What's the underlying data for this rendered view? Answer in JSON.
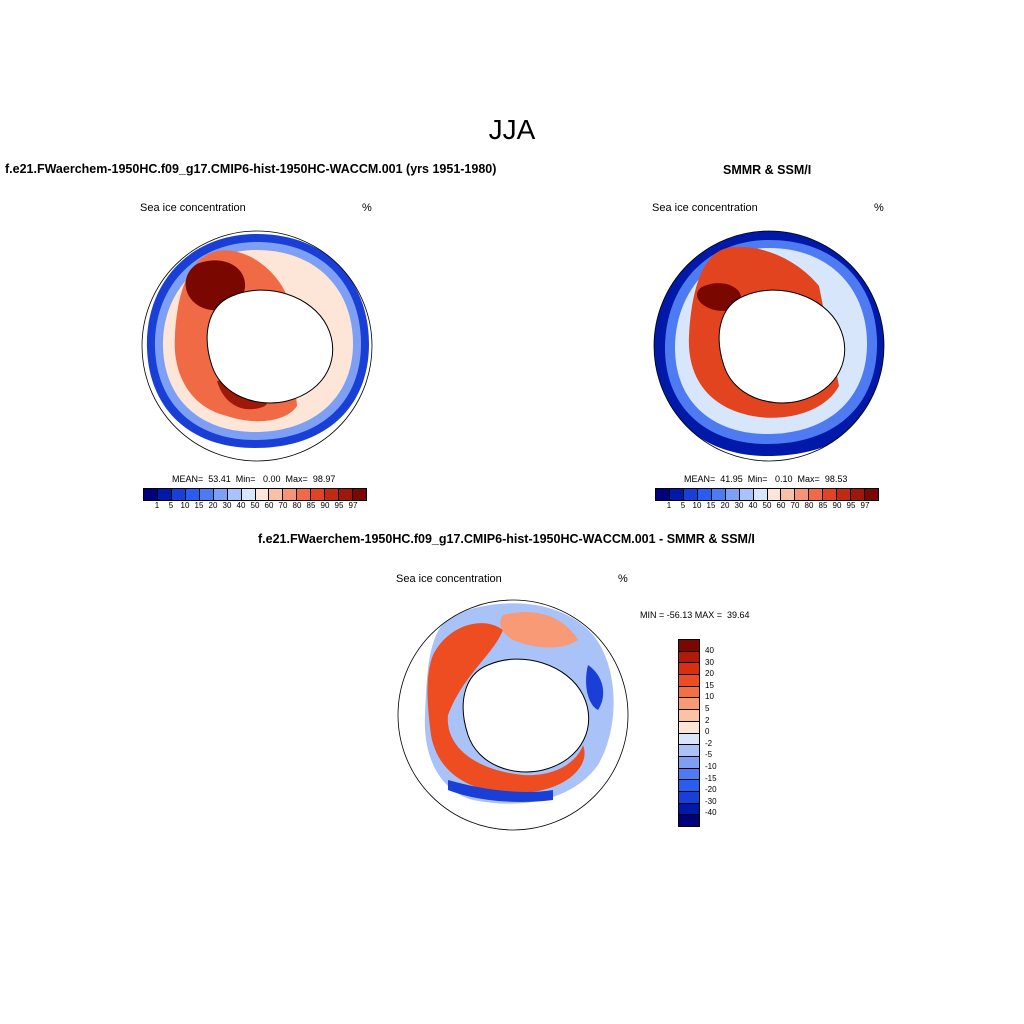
{
  "title": "JJA",
  "panels": {
    "model": {
      "title": "f.e21.FWaerchem-1950HC.f09_g17.CMIP6-hist-1950HC-WACCM.001 (yrs 1951-1980)",
      "variable": "Sea ice concentration",
      "units": "%",
      "stats": "MEAN=  53.41  Min=   0.00  Max=  98.97"
    },
    "obs": {
      "title": "SMMR & SSM/I",
      "variable": "Sea ice concentration",
      "units": "%",
      "stats": "MEAN=  41.95  Min=   0.10  Max=  98.53"
    },
    "diff": {
      "title": "f.e21.FWaerchem-1950HC.f09_g17.CMIP6-hist-1950HC-WACCM.001 - SMMR & SSM/I",
      "variable": "Sea ice concentration",
      "units": "%",
      "stats": "MIN = -56.13 MAX =  39.64"
    }
  },
  "colorbar_abs": {
    "labels": [
      "1",
      "5",
      "10",
      "15",
      "20",
      "30",
      "40",
      "50",
      "60",
      "70",
      "80",
      "85",
      "90",
      "95",
      "97"
    ],
    "colors": [
      "#00007f",
      "#0019a8",
      "#1a3fd6",
      "#2a5cf0",
      "#4f7bf2",
      "#7ea0f4",
      "#a9c2f7",
      "#d8e6fb",
      "#fde5d8",
      "#f9c1a6",
      "#f69473",
      "#ef6a45",
      "#e34420",
      "#c42a10",
      "#a01808",
      "#7a0800"
    ]
  },
  "colorbar_diff": {
    "labels": [
      "40",
      "30",
      "20",
      "15",
      "10",
      "5",
      "2",
      "0",
      "-2",
      "-5",
      "-10",
      "-15",
      "-20",
      "-30",
      "-40"
    ],
    "colors": [
      "#7a0800",
      "#b01a06",
      "#d8300e",
      "#ee4d22",
      "#f56f45",
      "#f79a75",
      "#fbc3a6",
      "#fde6d8",
      "#d8e6fb",
      "#a9c2f7",
      "#7ea0f4",
      "#4f7bf2",
      "#2a5cf0",
      "#1a3fd6",
      "#0019a8",
      "#00007f"
    ]
  }
}
